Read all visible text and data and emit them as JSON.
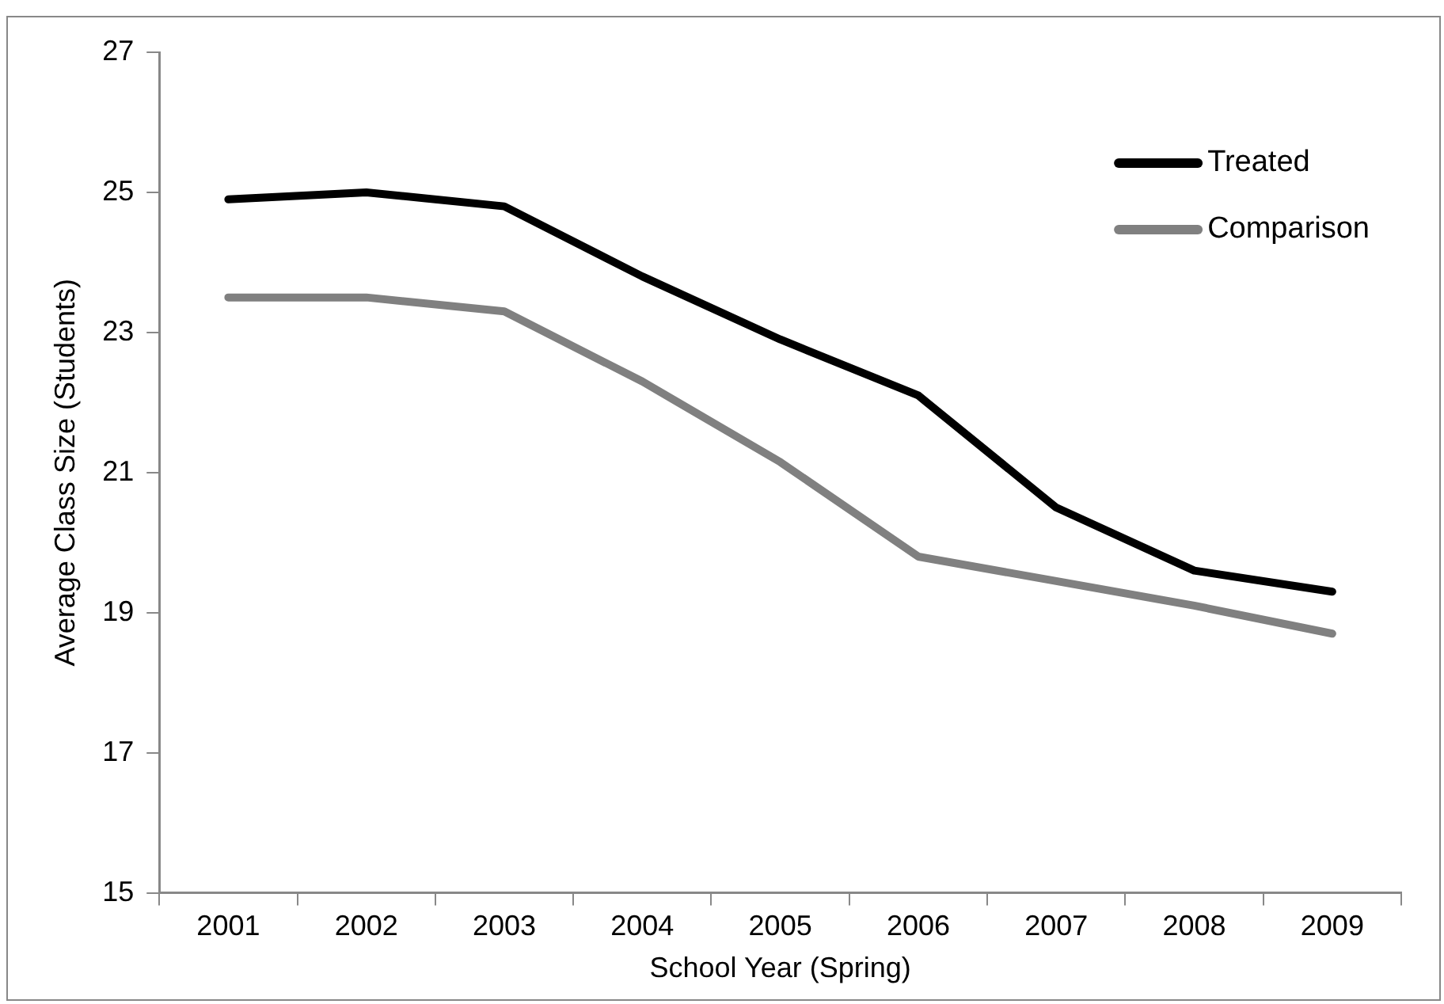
{
  "chart_data": {
    "type": "line",
    "xlabel": "School Year (Spring)",
    "ylabel": "Average Class Size (Students)",
    "categories": [
      "2001",
      "2002",
      "2003",
      "2004",
      "2005",
      "2006",
      "2007",
      "2008",
      "2009"
    ],
    "series": [
      {
        "name": "Treated",
        "color": "#000000",
        "values": [
          24.9,
          25.0,
          24.8,
          23.8,
          22.9,
          22.1,
          20.5,
          19.6,
          19.3
        ]
      },
      {
        "name": "Comparison",
        "color": "#808080",
        "values": [
          23.5,
          23.5,
          23.3,
          22.3,
          21.15,
          19.8,
          19.45,
          19.1,
          18.7
        ]
      }
    ],
    "ylim": [
      15,
      27
    ],
    "yticks": [
      15,
      17,
      19,
      21,
      23,
      25,
      27
    ],
    "grid": false,
    "legend": "top right",
    "marker": "none",
    "line_style": "solid"
  }
}
